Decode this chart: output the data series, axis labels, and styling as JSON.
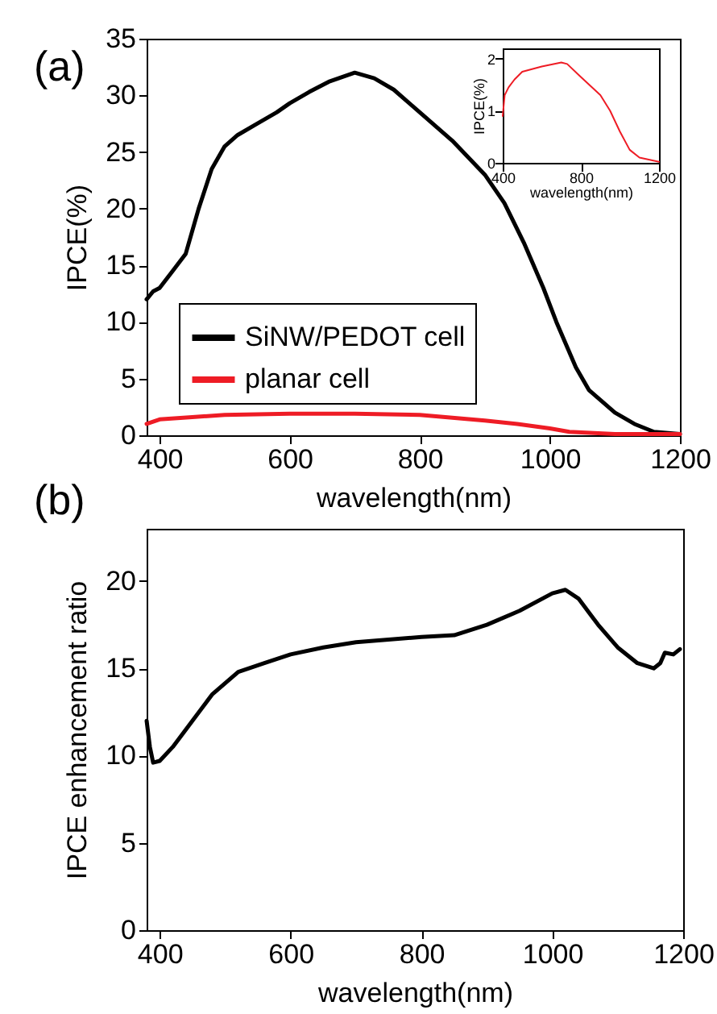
{
  "chart_data": [
    {
      "type": "line",
      "title": "(a)",
      "xlabel": "wavelength(nm)",
      "ylabel": "IPCE(%)",
      "xlim": [
        380,
        1200
      ],
      "ylim": [
        0,
        35
      ],
      "xticks": [
        400,
        600,
        800,
        1000,
        1200
      ],
      "yticks": [
        0,
        5,
        10,
        15,
        20,
        25,
        30,
        35
      ],
      "legend": "bottom left",
      "grid": false,
      "series": [
        {
          "name": "SiNW/PEDOT cell",
          "color": "#000000",
          "x": [
            380,
            390,
            400,
            420,
            440,
            460,
            480,
            500,
            520,
            550,
            580,
            600,
            630,
            660,
            700,
            730,
            760,
            800,
            850,
            900,
            930,
            960,
            990,
            1010,
            1040,
            1060,
            1080,
            1100,
            1130,
            1160,
            1200
          ],
          "values": [
            12,
            12.7,
            13,
            14.5,
            16,
            20,
            23.5,
            25.5,
            26.5,
            27.5,
            28.5,
            29.3,
            30.3,
            31.2,
            32,
            31.5,
            30.5,
            28.5,
            26,
            23,
            20.5,
            17,
            13,
            10,
            6,
            4,
            3,
            2,
            1,
            0.3,
            0.1
          ]
        },
        {
          "name": "planar cell",
          "color": "#ee1c25",
          "x": [
            380,
            400,
            450,
            500,
            600,
            700,
            800,
            900,
            950,
            1000,
            1030,
            1100,
            1200
          ],
          "values": [
            1,
            1.4,
            1.6,
            1.8,
            1.9,
            1.9,
            1.8,
            1.3,
            1,
            0.6,
            0.3,
            0.1,
            0.1
          ]
        }
      ]
    },
    {
      "type": "line",
      "xlabel": "wavelength(nm)",
      "ylabel": "IPCE(%)",
      "xlim": [
        400,
        1200
      ],
      "ylim": [
        0,
        2.2
      ],
      "xticks": [
        400,
        800,
        1200
      ],
      "yticks": [
        0,
        1,
        2
      ],
      "grid": false,
      "series": [
        {
          "color": "#ee1c25",
          "x": [
            400,
            410,
            430,
            460,
            500,
            600,
            700,
            730,
            800,
            900,
            950,
            1000,
            1050,
            1100,
            1200
          ],
          "values": [
            0.9,
            1.3,
            1.45,
            1.6,
            1.75,
            1.85,
            1.93,
            1.9,
            1.65,
            1.3,
            1,
            0.6,
            0.25,
            0.1,
            0.02
          ]
        }
      ]
    },
    {
      "type": "line",
      "title": "(b)",
      "xlabel": "wavelength(nm)",
      "ylabel": "IPCE enhancement ratio",
      "xlim": [
        380,
        1200
      ],
      "ylim": [
        0,
        23
      ],
      "xticks": [
        400,
        600,
        800,
        1000,
        1200
      ],
      "yticks": [
        0,
        5,
        10,
        15,
        20
      ],
      "grid": false,
      "series": [
        {
          "color": "#000000",
          "x": [
            380,
            385,
            390,
            400,
            420,
            450,
            480,
            520,
            560,
            600,
            650,
            700,
            800,
            850,
            900,
            950,
            1000,
            1020,
            1040,
            1070,
            1100,
            1130,
            1155,
            1165,
            1172,
            1185,
            1195
          ],
          "values": [
            12,
            10.5,
            9.6,
            9.7,
            10.5,
            12,
            13.5,
            14.8,
            15.3,
            15.8,
            16.2,
            16.5,
            16.8,
            16.9,
            17.5,
            18.3,
            19.3,
            19.5,
            19,
            17.5,
            16.2,
            15.3,
            15,
            15.3,
            15.9,
            15.8,
            16.1
          ]
        }
      ]
    }
  ]
}
